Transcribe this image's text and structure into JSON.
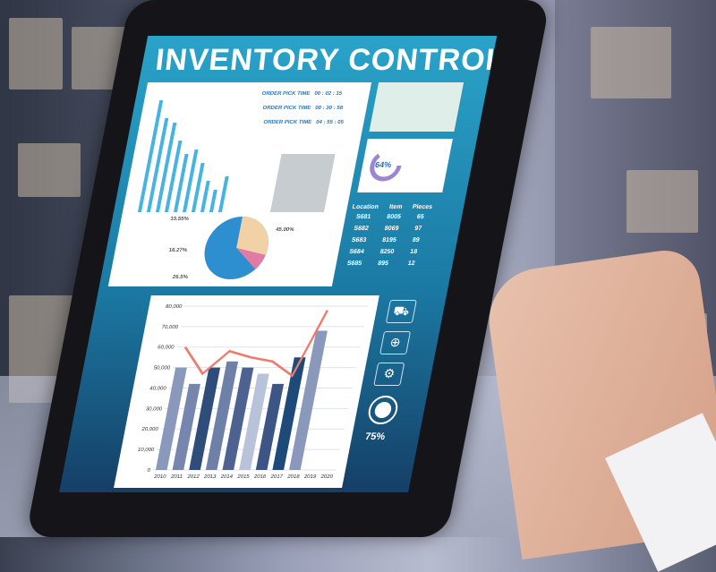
{
  "screen": {
    "title": "INVENTORY CONTROL",
    "pick_times": [
      {
        "label": "ORDER PICK TIME",
        "value": "00 : 02 : 15"
      },
      {
        "label": "ORDER PICK TIME",
        "value": "00 : 30 : 58"
      },
      {
        "label": "ORDER PICK TIME",
        "value": "04 : 55 : 05"
      }
    ],
    "gauge_percent": "64%",
    "gauge_value": 64,
    "pie_labels": [
      "15.55%",
      "16.27%",
      "26.5%",
      "45.00%"
    ],
    "pie_colors": [
      "#2d8fd0",
      "#f3d1a6",
      "#e27aa6"
    ],
    "table": {
      "headers": [
        "Location",
        "Item",
        "Pieces"
      ],
      "rows": [
        [
          "S681",
          "8005",
          "65"
        ],
        [
          "S682",
          "8069",
          "97"
        ],
        [
          "S683",
          "8195",
          "89"
        ],
        [
          "S684",
          "8250",
          "18"
        ],
        [
          "S685",
          "895",
          "12"
        ]
      ]
    },
    "side_icons": [
      "truck-icon",
      "globe-icon",
      "gear-icon",
      "circle-icon"
    ],
    "side_percent": "75%",
    "accent": "#f07a6e"
  },
  "chart_data": {
    "type": "bar",
    "categories": [
      "2010",
      "2011",
      "2012",
      "2013",
      "2014",
      "2015",
      "2016",
      "2017",
      "2018",
      "2019",
      "2020"
    ],
    "values": [
      50000,
      42000,
      50000,
      53000,
      50000,
      47000,
      42000,
      55000,
      68000,
      null,
      null
    ],
    "line": [
      60000,
      47000,
      58000,
      55000,
      53000,
      46000,
      78000
    ],
    "yticks": [
      "0",
      "10,000",
      "20,000",
      "30,000",
      "40,000",
      "50,000",
      "60,000",
      "70,000",
      "80,000"
    ],
    "ylim": [
      0,
      80000
    ],
    "grid": true
  }
}
